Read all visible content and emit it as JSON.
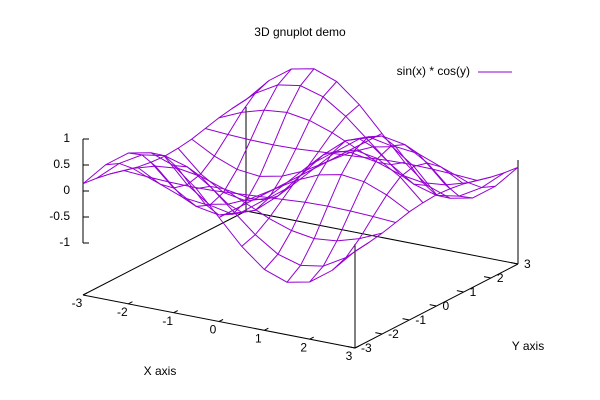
{
  "chart_data": {
    "type": "surface",
    "title": "3D gnuplot demo",
    "x_label": "X axis",
    "y_label": "Y axis",
    "series": [
      {
        "name": "sin(x) * cos(y)",
        "color": "#9400d3"
      }
    ],
    "x": [
      -3,
      -2.5,
      -2,
      -1.5,
      -1,
      -0.5,
      0,
      0.5,
      1,
      1.5,
      2,
      2.5,
      3
    ],
    "y": [
      -3,
      -2.5,
      -2,
      -1.5,
      -1,
      -0.5,
      0,
      0.5,
      1,
      1.5,
      2,
      2.5,
      3
    ],
    "z": [
      [
        0.14,
        0.59,
        0.9,
        0.99,
        0.83,
        0.47,
        0,
        -0.47,
        -0.83,
        -0.99,
        -0.9,
        -0.59,
        -0.14
      ],
      [
        0.11,
        0.48,
        0.73,
        0.8,
        0.67,
        0.38,
        0,
        -0.38,
        -0.67,
        -0.8,
        -0.73,
        -0.48,
        -0.11
      ],
      [
        0.06,
        0.25,
        0.38,
        0.42,
        0.35,
        0.2,
        0,
        -0.2,
        -0.35,
        -0.42,
        -0.38,
        -0.25,
        -0.06
      ],
      [
        -0.01,
        -0.04,
        -0.06,
        -0.07,
        -0.06,
        -0.03,
        0,
        0.03,
        0.06,
        0.07,
        0.06,
        0.04,
        0.01
      ],
      [
        -0.08,
        -0.32,
        -0.49,
        -0.54,
        -0.45,
        -0.26,
        0,
        0.26,
        0.45,
        0.54,
        0.49,
        0.32,
        0.08
      ],
      [
        -0.12,
        -0.53,
        -0.8,
        -0.88,
        -0.74,
        -0.42,
        0,
        0.42,
        0.74,
        0.88,
        0.8,
        0.53,
        0.12
      ],
      [
        -0.14,
        -0.6,
        -0.91,
        -1,
        -0.84,
        -0.48,
        0,
        0.48,
        0.84,
        1,
        0.91,
        0.6,
        0.14
      ],
      [
        -0.12,
        -0.53,
        -0.8,
        -0.88,
        -0.74,
        -0.42,
        0,
        0.42,
        0.74,
        0.88,
        0.8,
        0.53,
        0.12
      ],
      [
        -0.08,
        -0.32,
        -0.49,
        -0.54,
        -0.45,
        -0.26,
        0,
        0.26,
        0.45,
        0.54,
        0.49,
        0.32,
        0.08
      ],
      [
        -0.01,
        -0.04,
        -0.06,
        -0.07,
        -0.06,
        -0.03,
        0,
        0.03,
        0.06,
        0.07,
        0.06,
        0.04,
        0.01
      ],
      [
        0.06,
        0.25,
        0.38,
        0.42,
        0.35,
        0.2,
        0,
        -0.2,
        -0.35,
        -0.42,
        -0.38,
        -0.25,
        -0.06
      ],
      [
        0.11,
        0.48,
        0.73,
        0.8,
        0.67,
        0.38,
        0,
        -0.38,
        -0.67,
        -0.8,
        -0.73,
        -0.48,
        -0.11
      ],
      [
        0.14,
        0.59,
        0.9,
        0.99,
        0.83,
        0.47,
        0,
        -0.47,
        -0.83,
        -0.99,
        -0.9,
        -0.59,
        -0.14
      ]
    ],
    "xlim": [
      -3,
      3
    ],
    "ylim": [
      -3,
      3
    ],
    "zlim": [
      -1,
      1
    ],
    "xticks": [
      -3,
      -2,
      -1,
      0,
      1,
      2,
      3
    ],
    "yticks": [
      -3,
      -2,
      -1,
      0,
      1,
      2,
      3
    ],
    "zticks": [
      -1,
      -0.5,
      0,
      0.5,
      1
    ]
  }
}
